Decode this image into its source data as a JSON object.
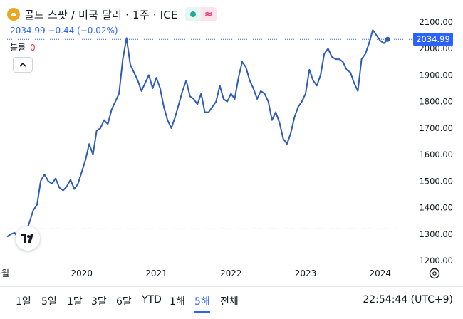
{
  "header": {
    "title": "골드 스팟 / 미국 달러 · 1주 · ICE",
    "status_icon": "market-open-dot",
    "wave_icon": "≈"
  },
  "quote": {
    "last": "2034.99",
    "change": "−0.44",
    "change_pct": "(−0.02%)"
  },
  "volume": {
    "label": "볼륨",
    "value": "0"
  },
  "logo": "TV",
  "time_ranges": [
    "1일",
    "5일",
    "1달",
    "3달",
    "6달",
    "YTD",
    "1해",
    "5해",
    "전체"
  ],
  "active_range": "5해",
  "clock": "22:54:44 (UTC+9)",
  "colors": {
    "line": "#2d5cb8",
    "accent": "#2962ff",
    "down": "#f23645",
    "label_bg": "#2962ff"
  },
  "chart_data": {
    "type": "line",
    "series": [
      {
        "x": [
          2019.0,
          2019.05,
          2019.1,
          2019.15,
          2019.2,
          2019.25,
          2019.3,
          2019.35,
          2019.4,
          2019.45,
          2019.5,
          2019.55,
          2019.6,
          2019.65,
          2019.7,
          2019.75,
          2019.8,
          2019.85,
          2019.9,
          2019.95,
          2020.0,
          2020.05,
          2020.1,
          2020.15,
          2020.2,
          2020.25,
          2020.3,
          2020.35,
          2020.4,
          2020.45,
          2020.5,
          2020.55,
          2020.6,
          2020.65,
          2020.7,
          2020.75,
          2020.8,
          2020.85,
          2020.9,
          2020.95,
          2021.0,
          2021.05,
          2021.1,
          2021.15,
          2021.2,
          2021.25,
          2021.3,
          2021.35,
          2021.4,
          2021.45,
          2021.5,
          2021.55,
          2021.6,
          2021.65,
          2021.7,
          2021.75,
          2021.8,
          2021.85,
          2021.9,
          2021.95,
          2022.0,
          2022.05,
          2022.1,
          2022.15,
          2022.2,
          2022.25,
          2022.3,
          2022.35,
          2022.4,
          2022.45,
          2022.5,
          2022.55,
          2022.6,
          2022.65,
          2022.7,
          2022.75,
          2022.8,
          2022.85,
          2022.9,
          2022.95,
          2023.0,
          2023.05,
          2023.1,
          2023.15,
          2023.2,
          2023.25,
          2023.3,
          2023.35,
          2023.4,
          2023.45,
          2023.5,
          2023.55,
          2023.6,
          2023.65,
          2023.7,
          2023.75,
          2023.8,
          2023.85,
          2023.9,
          2023.95,
          2024.0,
          2024.05,
          2024.1
        ],
        "y": [
          1290,
          1300,
          1305,
          1285,
          1310,
          1305,
          1345,
          1390,
          1410,
          1500,
          1525,
          1500,
          1490,
          1510,
          1475,
          1465,
          1480,
          1505,
          1470,
          1490,
          1535,
          1580,
          1640,
          1600,
          1690,
          1700,
          1730,
          1715,
          1770,
          1800,
          1830,
          1960,
          2040,
          1940,
          1910,
          1880,
          1840,
          1870,
          1900,
          1850,
          1890,
          1850,
          1780,
          1730,
          1700,
          1740,
          1790,
          1840,
          1880,
          1820,
          1810,
          1790,
          1830,
          1760,
          1760,
          1780,
          1800,
          1860,
          1810,
          1800,
          1830,
          1810,
          1890,
          1950,
          1930,
          1880,
          1850,
          1810,
          1840,
          1830,
          1800,
          1730,
          1760,
          1720,
          1660,
          1640,
          1680,
          1740,
          1780,
          1800,
          1830,
          1920,
          1880,
          1860,
          1900,
          1980,
          2000,
          1970,
          1960,
          1960,
          1950,
          1920,
          1910,
          1870,
          1840,
          1960,
          1980,
          2020,
          2070,
          2050,
          2030,
          2020,
          2035
        ]
      }
    ],
    "x_ticks": [
      2020,
      2021,
      2022,
      2023,
      2024
    ],
    "x_tick_labels": [
      "2020",
      "2021",
      "2022",
      "2023",
      "2024"
    ],
    "edge_label": "월",
    "y_ticks": [
      1200,
      1300,
      1400,
      1500,
      1600,
      1700,
      1800,
      1900,
      2000,
      2100
    ],
    "y_tick_labels": [
      "1200.00",
      "1300.00",
      "1400.00",
      "1500.00",
      "1600.00",
      "1700.00",
      "1800.00",
      "1900.00",
      "2000.00",
      "2100.00"
    ],
    "ylim": [
      1200,
      2100
    ],
    "xlim": [
      2019.0,
      2024.25
    ],
    "reference_lines": [
      1320,
      2034.99
    ],
    "last_price_label": "2034.99",
    "grid": false
  }
}
